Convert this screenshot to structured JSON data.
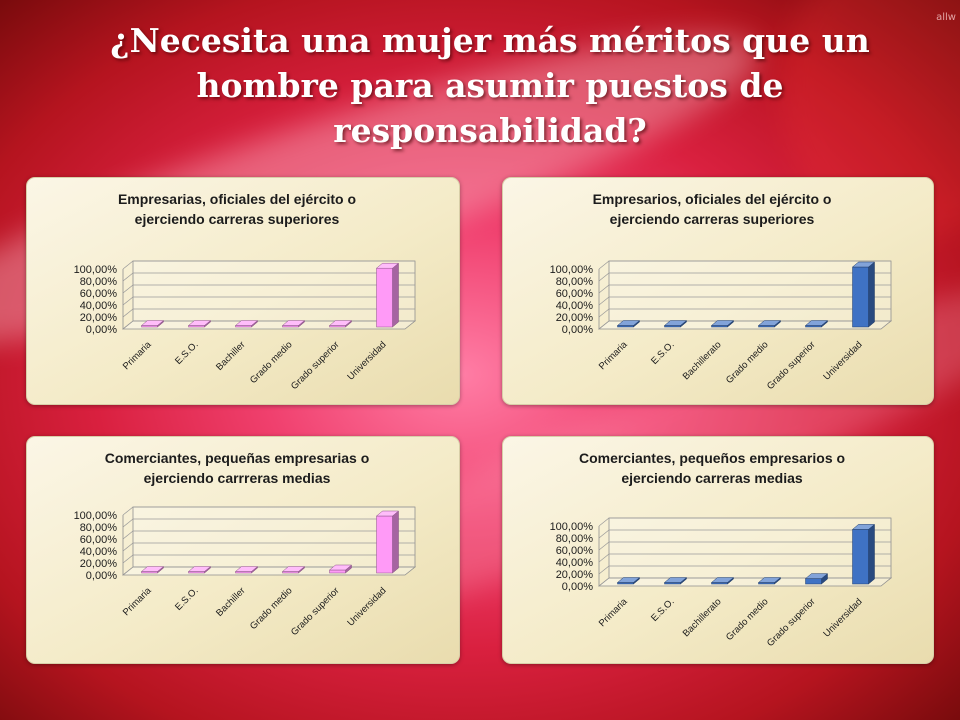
{
  "page": {
    "title": "¿Necesita una mujer más méritos que un hombre para asumir puestos de responsabilidad?",
    "watermark": "allw"
  },
  "colors": {
    "women_bar": "#ff9af7",
    "men_bar": "#3f72c4"
  },
  "chart_data": [
    {
      "type": "bar",
      "title": "Empresarias, oficiales del ejército o ejerciendo carreras superiores",
      "title_lines": [
        "Empresarias, oficiales del ejército o",
        "ejerciendo carreras superiores"
      ],
      "categories": [
        "Primaria",
        "E.S.O.",
        "Bachiller",
        "Grado medio",
        "Grado superior",
        "Universidad"
      ],
      "values": [
        0,
        0,
        0,
        2,
        0,
        98
      ],
      "yticks": [
        "0,00%",
        "20,00%",
        "40,00%",
        "60,00%",
        "80,00%",
        "100,00%"
      ],
      "ylim": [
        0,
        100
      ],
      "color": "#ff9af7",
      "grid": true,
      "legend": "none"
    },
    {
      "type": "bar",
      "title": "Empresarios, oficiales del ejército o ejerciendo carreras superiores",
      "title_lines": [
        "Empresarios, oficiales del ejército o",
        "ejerciendo carreras superiores"
      ],
      "categories": [
        "Primaria",
        "E.S.O.",
        "Bachillerato",
        "Grado medio",
        "Grado superior",
        "Universidad"
      ],
      "values": [
        0,
        0,
        0,
        0,
        0,
        100
      ],
      "yticks": [
        "0,00%",
        "20,00%",
        "40,00%",
        "60,00%",
        "80,00%",
        "100,00%"
      ],
      "ylim": [
        0,
        100
      ],
      "color": "#3f72c4",
      "grid": true,
      "legend": "none"
    },
    {
      "type": "bar",
      "title": "Comerciantes, pequeñas empresarias o ejerciendo carrreras medias",
      "title_lines": [
        "Comerciantes, pequeñas empresarias o",
        "ejerciendo carrreras  medias"
      ],
      "categories": [
        "Primaria",
        "E.S.O.",
        "Bachiller",
        "Grado medio",
        "Grado superior",
        "Universidad"
      ],
      "values": [
        0,
        0,
        0,
        0,
        5,
        95
      ],
      "yticks": [
        "0,00%",
        "20,00%",
        "40,00%",
        "60,00%",
        "80,00%",
        "100,00%"
      ],
      "ylim": [
        0,
        100
      ],
      "color": "#ff9af7",
      "grid": true,
      "legend": "none"
    },
    {
      "type": "bar",
      "title": "Comerciantes, pequeños empresarios o ejerciendo carreras medias",
      "title_lines": [
        "Comerciantes, pequeños empresarios o",
        "ejerciendo carreras medias"
      ],
      "categories": [
        "Primaria",
        "E.S.O.",
        "Bachillerato",
        "Grado medio",
        "Grado superior",
        "Universidad"
      ],
      "values": [
        0,
        0,
        0,
        0,
        9,
        91
      ],
      "yticks": [
        "0,00%",
        "20,00%",
        "40,00%",
        "60,00%",
        "80,00%",
        "100,00%"
      ],
      "ylim": [
        0,
        100
      ],
      "color": "#3f72c4",
      "grid": true,
      "legend": "none"
    }
  ]
}
